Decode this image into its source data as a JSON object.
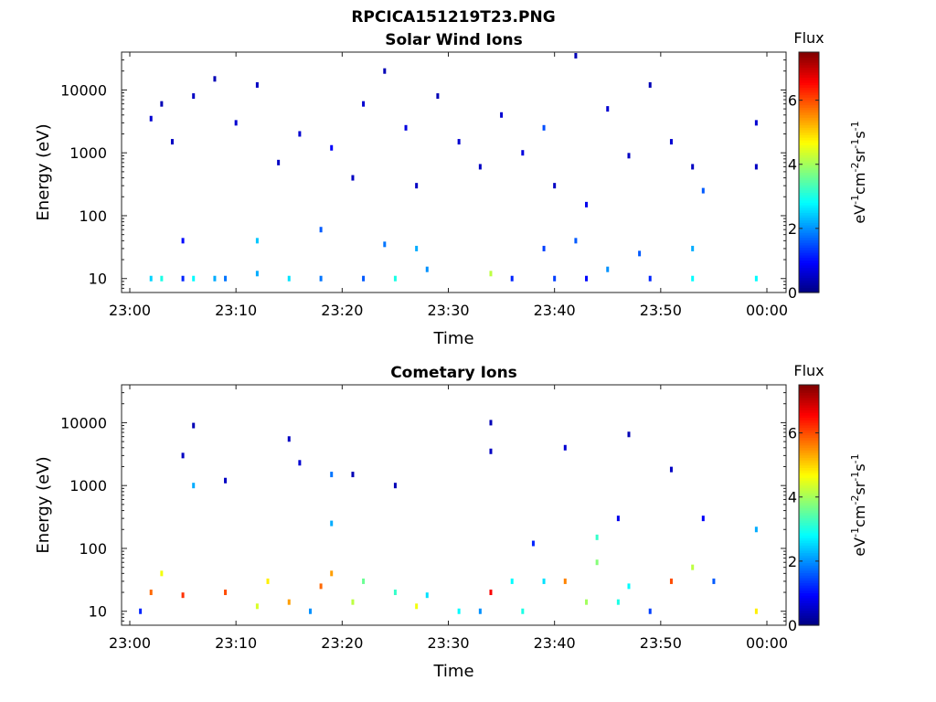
{
  "figure": {
    "title": "RPCICA151219T23.PNG"
  },
  "chart_data": [
    {
      "type": "heatmap",
      "title": "Solar Wind Ions",
      "xlabel": "Time",
      "ylabel": "Energy (eV)",
      "x_ticks": [
        "23:00",
        "23:10",
        "23:20",
        "23:30",
        "23:40",
        "23:50",
        "00:00"
      ],
      "xlim": [
        "23:00",
        "00:00"
      ],
      "ylim": [
        6,
        40000
      ],
      "y_scale": "log",
      "y_ticks": [
        10,
        100,
        1000,
        10000
      ],
      "y_tick_labels": [
        "10",
        "100",
        "1000",
        "10000"
      ],
      "colorbar": {
        "title": "Flux",
        "label": "eV-1cm-2sr-1s-1",
        "label_parts": [
          "eV",
          "-1",
          "cm",
          "-2",
          "sr",
          "-1",
          "s",
          "-1"
        ],
        "range": [
          0,
          7.5
        ],
        "ticks": [
          0,
          2,
          4,
          6
        ],
        "tick_labels": [
          "0",
          "2",
          "4",
          "6"
        ],
        "colormap": "jet"
      },
      "cells": [
        [
          "23:02",
          3500,
          0.6
        ],
        [
          "23:03",
          6000,
          0.4
        ],
        [
          "23:04",
          1500,
          0.5
        ],
        [
          "23:06",
          8000,
          0.5
        ],
        [
          "23:08",
          15000,
          0.4
        ],
        [
          "23:10",
          3000,
          0.6
        ],
        [
          "23:12",
          12000,
          0.5
        ],
        [
          "23:14",
          700,
          0.5
        ],
        [
          "23:16",
          2000,
          0.6
        ],
        [
          "23:19",
          1200,
          0.9
        ],
        [
          "23:21",
          400,
          0.5
        ],
        [
          "23:22",
          6000,
          0.6
        ],
        [
          "23:24",
          20000,
          0.4
        ],
        [
          "23:26",
          2500,
          0.7
        ],
        [
          "23:27",
          300,
          0.5
        ],
        [
          "23:29",
          8000,
          0.4
        ],
        [
          "23:31",
          1500,
          0.6
        ],
        [
          "23:33",
          600,
          0.5
        ],
        [
          "23:35",
          4000,
          0.6
        ],
        [
          "23:37",
          1000,
          0.7
        ],
        [
          "23:39",
          2500,
          1.5
        ],
        [
          "23:40",
          300,
          0.5
        ],
        [
          "23:42",
          35000,
          0.4
        ],
        [
          "23:43",
          150,
          0.8
        ],
        [
          "23:45",
          5000,
          0.6
        ],
        [
          "23:47",
          900,
          0.5
        ],
        [
          "23:49",
          12000,
          0.4
        ],
        [
          "23:51",
          1500,
          0.6
        ],
        [
          "23:53",
          600,
          0.5
        ],
        [
          "23:54",
          250,
          1.6
        ],
        [
          "23:59",
          3000,
          0.6
        ],
        [
          "23:59",
          600,
          0.5
        ],
        [
          "23:02",
          10,
          2.5
        ],
        [
          "23:03",
          10,
          3.0
        ],
        [
          "23:05",
          10,
          1.2
        ],
        [
          "23:06",
          10,
          2.8
        ],
        [
          "23:08",
          10,
          2.2
        ],
        [
          "23:09",
          10,
          1.8
        ],
        [
          "23:12",
          12,
          2.2
        ],
        [
          "23:15",
          10,
          2.6
        ],
        [
          "23:18",
          10,
          1.8
        ],
        [
          "23:22",
          10,
          1.6
        ],
        [
          "23:25",
          10,
          3.0
        ],
        [
          "23:28",
          14,
          2.0
        ],
        [
          "23:34",
          12,
          4.2
        ],
        [
          "23:36",
          10,
          1.2
        ],
        [
          "23:40",
          10,
          1.4
        ],
        [
          "23:43",
          10,
          1.0
        ],
        [
          "23:45",
          14,
          2.0
        ],
        [
          "23:49",
          10,
          1.2
        ],
        [
          "23:53",
          10,
          2.8
        ],
        [
          "23:59",
          10,
          2.8
        ],
        [
          "23:05",
          40,
          1.0
        ],
        [
          "23:12",
          40,
          2.4
        ],
        [
          "23:18",
          60,
          1.6
        ],
        [
          "23:24",
          35,
          1.8
        ],
        [
          "23:27",
          30,
          2.2
        ],
        [
          "23:39",
          30,
          1.4
        ],
        [
          "23:42",
          40,
          1.6
        ],
        [
          "23:48",
          25,
          1.6
        ],
        [
          "23:53",
          30,
          2.2
        ]
      ]
    },
    {
      "type": "heatmap",
      "title": "Cometary Ions",
      "xlabel": "Time",
      "ylabel": "Energy (eV)",
      "x_ticks": [
        "23:00",
        "23:10",
        "23:20",
        "23:30",
        "23:40",
        "23:50",
        "00:00"
      ],
      "xlim": [
        "23:00",
        "00:00"
      ],
      "ylim": [
        6,
        40000
      ],
      "y_scale": "log",
      "y_ticks": [
        10,
        100,
        1000,
        10000
      ],
      "y_tick_labels": [
        "10",
        "100",
        "1000",
        "10000"
      ],
      "colorbar": {
        "title": "Flux",
        "label": "eV-1cm-2sr-1s-1",
        "label_parts": [
          "eV",
          "-1",
          "cm",
          "-2",
          "sr",
          "-1",
          "s",
          "-1"
        ],
        "range": [
          0,
          7.5
        ],
        "ticks": [
          0,
          2,
          4,
          6
        ],
        "tick_labels": [
          "0",
          "2",
          "4",
          "6"
        ],
        "colormap": "jet"
      },
      "cells": [
        [
          "23:06",
          9000,
          0.4
        ],
        [
          "23:05",
          3000,
          0.5
        ],
        [
          "23:06",
          1000,
          2.2
        ],
        [
          "23:09",
          1200,
          0.5
        ],
        [
          "23:15",
          5500,
          0.5
        ],
        [
          "23:16",
          2300,
          0.6
        ],
        [
          "23:19",
          1500,
          1.8
        ],
        [
          "23:21",
          1500,
          0.4
        ],
        [
          "23:25",
          1000,
          0.4
        ],
        [
          "23:34",
          10000,
          0.4
        ],
        [
          "23:34",
          3500,
          0.5
        ],
        [
          "23:41",
          4000,
          0.6
        ],
        [
          "23:47",
          6500,
          0.4
        ],
        [
          "23:51",
          1800,
          0.5
        ],
        [
          "23:46",
          300,
          0.8
        ],
        [
          "23:54",
          300,
          0.9
        ],
        [
          "23:59",
          200,
          2.2
        ],
        [
          "23:44",
          150,
          3.2
        ],
        [
          "23:19",
          250,
          2.2
        ],
        [
          "23:38",
          120,
          1.2
        ],
        [
          "23:02",
          20,
          5.8
        ],
        [
          "23:03",
          40,
          4.6
        ],
        [
          "23:05",
          18,
          6.2
        ],
        [
          "23:09",
          20,
          6.0
        ],
        [
          "23:12",
          12,
          4.4
        ],
        [
          "23:13",
          30,
          4.8
        ],
        [
          "23:15",
          14,
          5.4
        ],
        [
          "23:18",
          25,
          5.8
        ],
        [
          "23:19",
          40,
          5.4
        ],
        [
          "23:21",
          14,
          4.2
        ],
        [
          "23:22",
          30,
          3.6
        ],
        [
          "23:25",
          20,
          3.2
        ],
        [
          "23:27",
          12,
          4.6
        ],
        [
          "23:28",
          18,
          2.6
        ],
        [
          "23:31",
          10,
          2.8
        ],
        [
          "23:34",
          20,
          6.6
        ],
        [
          "23:37",
          10,
          3.0
        ],
        [
          "23:41",
          30,
          5.6
        ],
        [
          "23:43",
          14,
          4.0
        ],
        [
          "23:44",
          60,
          3.8
        ],
        [
          "23:46",
          14,
          3.0
        ],
        [
          "23:51",
          30,
          6.0
        ],
        [
          "23:53",
          50,
          4.2
        ],
        [
          "23:59",
          10,
          4.8
        ],
        [
          "23:01",
          10,
          1.2
        ],
        [
          "23:17",
          10,
          2.0
        ],
        [
          "23:33",
          10,
          2.0
        ],
        [
          "23:49",
          10,
          1.4
        ],
        [
          "23:55",
          30,
          1.6
        ],
        [
          "23:36",
          30,
          2.8
        ],
        [
          "23:39",
          30,
          2.6
        ],
        [
          "23:47",
          25,
          2.8
        ]
      ]
    }
  ]
}
